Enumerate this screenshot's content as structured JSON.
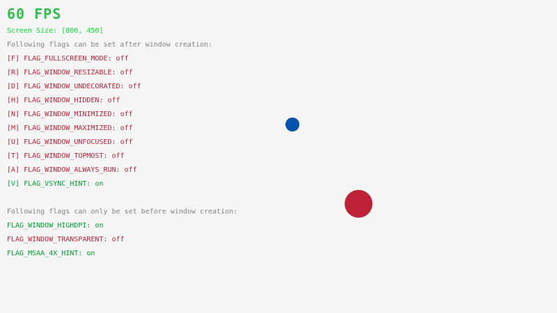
{
  "fps": "60 FPS",
  "screen_size": "Screen Size: [800, 450]",
  "colors": {
    "on": "#009e2f",
    "off": "#be2137",
    "info": "#828282",
    "screen": "#00e430",
    "fps": "#30bf4a",
    "ball_blue": "#0052ac",
    "ball_red": "#be2137"
  },
  "after_header": "Following flags can be set after window creation:",
  "after_flags": [
    {
      "label": "[F] FLAG_FULLSCREEN_MODE: ",
      "state": "off"
    },
    {
      "label": "[R] FLAG_WINDOW_RESIZABLE: ",
      "state": "off"
    },
    {
      "label": "[D] FLAG_WINDOW_UNDECORATED: ",
      "state": "off"
    },
    {
      "label": "[H] FLAG_WINDOW_HIDDEN: ",
      "state": "off"
    },
    {
      "label": "[N] FLAG_WINDOW_MINIMIZED: ",
      "state": "off"
    },
    {
      "label": "[M] FLAG_WINDOW_MAXIMIZED: ",
      "state": "off"
    },
    {
      "label": "[U] FLAG_WINDOW_UNFOCUSED: ",
      "state": "off"
    },
    {
      "label": "[T] FLAG_WINDOW_TOPMOST: ",
      "state": "off"
    },
    {
      "label": "[A] FLAG_WINDOW_ALWAYS_RUN: ",
      "state": "off"
    },
    {
      "label": "[V] FLAG_VSYNC_HINT: ",
      "state": "on"
    }
  ],
  "before_header": "Following flags can only be set before window creation:",
  "before_flags": [
    {
      "label": "FLAG_WINDOW_HIGHDPI: ",
      "state": "on"
    },
    {
      "label": "FLAG_WINDOW_TRANSPARENT: ",
      "state": "off"
    },
    {
      "label": "FLAG_MSAA_4X_HINT: ",
      "state": "on"
    }
  ]
}
